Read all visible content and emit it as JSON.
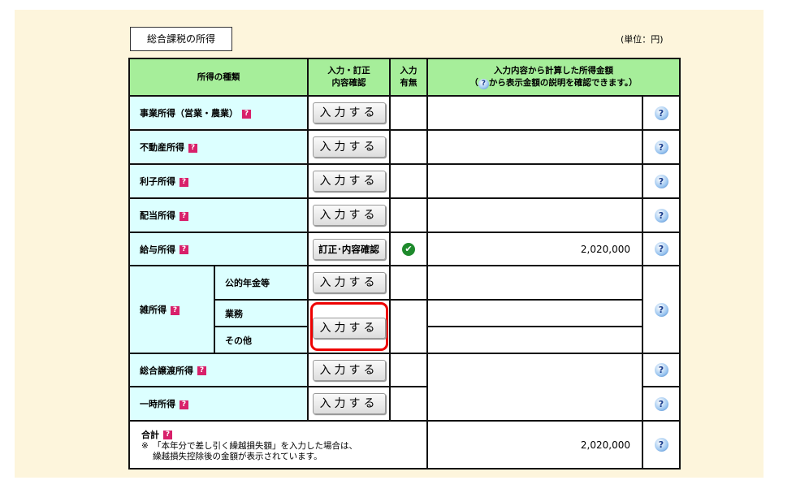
{
  "section_title": "総合課税の所得",
  "unit": "(単位：円)",
  "headers": {
    "type": "所得の種類",
    "action_l1": "入力・訂正",
    "action_l2": "内容確認",
    "input_l1": "入力",
    "input_l2": "有無",
    "amount_l1": "入力内容から計算した所得金額",
    "amount_l2_pre": "（",
    "amount_l2_post": "から表示金額の説明を確認できます。）"
  },
  "buttons": {
    "input": "入力する",
    "correct": "訂正･内容確認"
  },
  "rows": [
    {
      "label": "事業所得（営業・農業）",
      "amount": ""
    },
    {
      "label": "不動産所得",
      "amount": ""
    },
    {
      "label": "利子所得",
      "amount": ""
    },
    {
      "label": "配当所得",
      "amount": ""
    },
    {
      "label": "給与所得",
      "amount": "2,020,000",
      "entered": true
    },
    {
      "label": "雑所得",
      "sub": [
        "公的年金等",
        "業務",
        "その他"
      ]
    },
    {
      "label": "総合譲渡所得",
      "amount": ""
    },
    {
      "label": "一時所得",
      "amount": ""
    }
  ],
  "total": {
    "label": "合計",
    "note_l1": "※　「本年分で差し引く繰越損失額」を入力した場合は、",
    "note_l2": "繰越損失控除後の金額が表示されています。",
    "amount": "2,020,000"
  },
  "icons": {
    "q": "?",
    "help": "?",
    "check": "✔"
  },
  "colors": {
    "header": "#a6ee9a",
    "label_bg": "#dcffff",
    "panel": "#fdf5dc",
    "highlight": "#e00000"
  }
}
